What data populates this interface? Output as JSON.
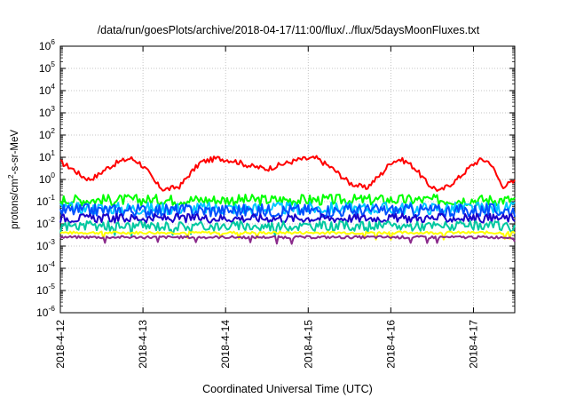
{
  "chart_data": {
    "type": "line",
    "title": "/data/run/goesPlots/archive/2018-04-17/11:00/flux/../flux/5daysMoonFluxes.txt",
    "xlabel": "Coordinated Universal Time (UTC)",
    "ylabel": {
      "pre": "protons/cm",
      "sup": "2",
      "post": "-s-sr-MeV"
    },
    "x_range": [
      "2018-04-12T00:00",
      "2018-04-17T12:00"
    ],
    "x_ticks": [
      "2018-4-12",
      "2018-4-13",
      "2018-4-14",
      "2018-4-15",
      "2018-4-16",
      "2018-4-17"
    ],
    "y_scale": "log",
    "ylim": [
      1e-06,
      1000000.0
    ],
    "y_ticks": [
      {
        "base": "10",
        "exp": "6"
      },
      {
        "base": "10",
        "exp": "5"
      },
      {
        "base": "10",
        "exp": "4"
      },
      {
        "base": "10",
        "exp": "3"
      },
      {
        "base": "10",
        "exp": "2"
      },
      {
        "base": "10",
        "exp": "1"
      },
      {
        "base": "10",
        "exp": "0"
      },
      {
        "base": "10",
        "exp": "-1"
      },
      {
        "base": "10",
        "exp": "-2"
      },
      {
        "base": "10",
        "exp": "-3"
      },
      {
        "base": "10",
        "exp": "-4"
      },
      {
        "base": "10",
        "exp": "-5"
      },
      {
        "base": "10",
        "exp": "-6"
      }
    ],
    "grid": true,
    "series": [
      {
        "color": "#ff0000",
        "x_days": [
          0,
          0.15,
          0.25,
          0.35,
          0.45,
          0.55,
          0.7,
          0.85,
          0.95,
          1.05,
          1.15,
          1.25,
          1.35,
          1.45,
          1.55,
          1.7,
          1.9,
          2.1,
          2.3,
          2.5,
          2.7,
          2.9,
          3.1,
          3.3,
          3.5,
          3.7,
          3.9,
          4.0,
          4.1,
          4.2,
          4.3,
          4.45,
          4.6,
          4.8,
          5.0,
          5.1,
          5.2,
          5.35,
          5.5
        ],
        "values": [
          6,
          3,
          1.5,
          1,
          1.5,
          3,
          6,
          9,
          6,
          2.5,
          0.7,
          0.35,
          0.4,
          0.5,
          1.5,
          6,
          9,
          7,
          4,
          3,
          5,
          8,
          9,
          3,
          0.7,
          0.4,
          2,
          6,
          8,
          6,
          3,
          0.6,
          0.3,
          1,
          5,
          8,
          6,
          0.5,
          0.8
        ],
        "noise": 0.12
      },
      {
        "color": "#00ff00",
        "x_days": [
          0,
          5.5
        ],
        "values": [
          0.12,
          0.12
        ],
        "noise": 0.25
      },
      {
        "color": "#00c8ff",
        "x_days": [
          0,
          5.5
        ],
        "values": [
          0.05,
          0.05
        ],
        "noise": 0.28
      },
      {
        "color": "#0050ff",
        "x_days": [
          0,
          5.5
        ],
        "values": [
          0.04,
          0.04
        ],
        "noise": 0.3
      },
      {
        "color": "#1a00c8",
        "x_days": [
          0,
          5.5
        ],
        "values": [
          0.018,
          0.018
        ],
        "noise": 0.2
      },
      {
        "color": "#00c8a0",
        "x_days": [
          0,
          5.5
        ],
        "values": [
          0.008,
          0.008
        ],
        "noise": 0.22
      },
      {
        "color": "#ffff00",
        "x_days": [
          0,
          5.5
        ],
        "values": [
          0.004,
          0.004
        ],
        "noise": 0.06
      },
      {
        "color": "#8b2a8b",
        "x_days": [
          0,
          5.5
        ],
        "values": [
          0.0025,
          0.0025
        ],
        "noise": 0.06
      }
    ]
  }
}
